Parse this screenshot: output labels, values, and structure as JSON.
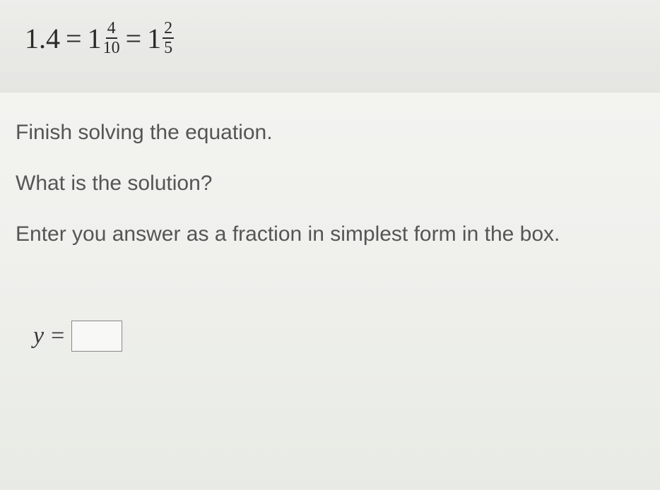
{
  "equation": {
    "decimal": "1.4",
    "eq1": "=",
    "mixed1_whole": "1",
    "mixed1_num": "4",
    "mixed1_den": "10",
    "eq2": "=",
    "mixed2_whole": "1",
    "mixed2_num": "2",
    "mixed2_den": "5"
  },
  "instructions": {
    "line1": "Finish solving the equation.",
    "line2": "What is the solution?",
    "line3": "Enter you answer as a fraction in simplest form in the box."
  },
  "answer": {
    "variable": "y",
    "equals": "=",
    "value": ""
  },
  "styling": {
    "equation_fontsize": 40,
    "fraction_fontsize": 24,
    "instruction_fontsize": 30,
    "answer_fontsize": 34,
    "equation_bg": "#ededea",
    "body_bg": "#f0f0ed",
    "text_color": "#4a4a4a",
    "equation_color": "#2a2a2a",
    "input_border": "#888888",
    "input_bg": "#f8f8f6"
  }
}
